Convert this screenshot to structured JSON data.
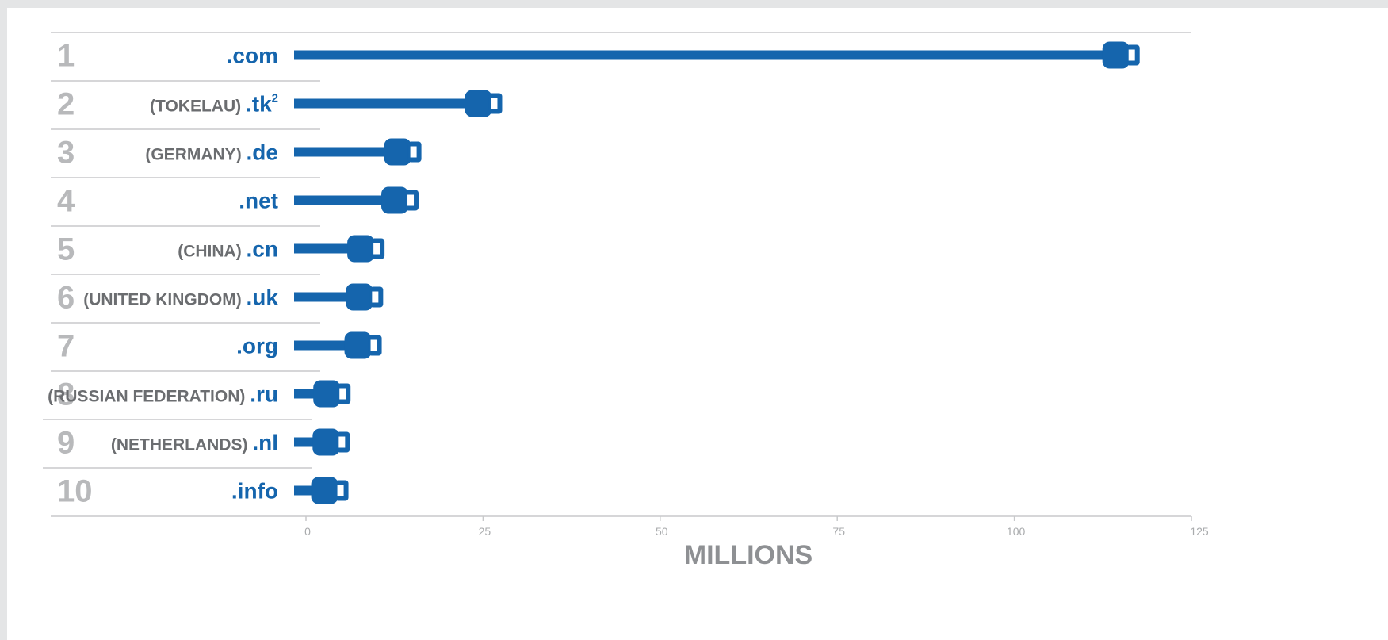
{
  "chart_data": {
    "type": "bar",
    "xlabel": "MILLIONS",
    "xlim": [
      0,
      125
    ],
    "x_ticks": [
      "0",
      "25",
      "50",
      "75",
      "100",
      "125"
    ],
    "x_tick_values": [
      0,
      25,
      50,
      75,
      100,
      125
    ],
    "bar_style": "cable plug (connector) at bar end",
    "colors": {
      "bar": "#1565ad",
      "rank": "#b8b9bb",
      "country": "#6b6d70",
      "rule": "#c8c9cb"
    },
    "rows": [
      {
        "rank": "1",
        "country": "",
        "tld": ".com",
        "sup": "",
        "value": 114
      },
      {
        "rank": "2",
        "country": "(TOKELAU)",
        "tld": ".tk",
        "sup": "2",
        "value": 24
      },
      {
        "rank": "3",
        "country": "(GERMANY)",
        "tld": ".de",
        "sup": "",
        "value": 12.6
      },
      {
        "rank": "4",
        "country": "",
        "tld": ".net",
        "sup": "",
        "value": 12.2
      },
      {
        "rank": "5",
        "country": "(CHINA)",
        "tld": ".cn",
        "sup": "",
        "value": 7.4
      },
      {
        "rank": "6",
        "country": "(UNITED KINGDOM)",
        "tld": ".uk",
        "sup": "",
        "value": 7.2
      },
      {
        "rank": "7",
        "country": "",
        "tld": ".org",
        "sup": "",
        "value": 7.0
      },
      {
        "rank": "8",
        "country": "(RUSSIAN FEDERATION)",
        "tld": ".ru",
        "sup": "",
        "value": 2.6
      },
      {
        "rank": "9",
        "country": "(NETHERLANDS)",
        "tld": ".nl",
        "sup": "",
        "value": 2.5
      },
      {
        "rank": "10",
        "country": "",
        "tld": ".info",
        "sup": "",
        "value": 2.3
      }
    ]
  }
}
